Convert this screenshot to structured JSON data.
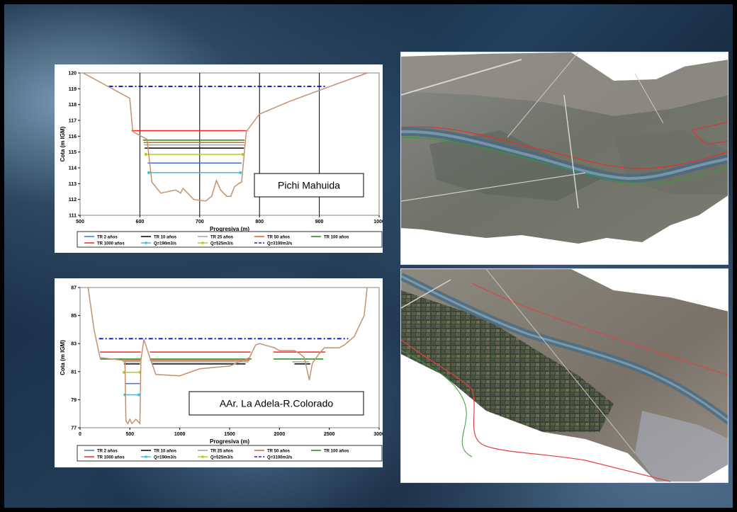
{
  "legend_labels": [
    "TR 2 años",
    "TR 10 años",
    "TR 25 años",
    "TR 50 años",
    "TR 100 años",
    "TR 1000 años",
    "Q=190m3/s",
    "Q=525m3/s",
    "Q=3100m3/s"
  ],
  "legend_colors": [
    "#4472c4",
    "#000000",
    "#a0a0a0",
    "#e06020",
    "#1a8a1a",
    "#ff2020",
    "#33c3e0",
    "#b0d020",
    "#1020d0"
  ],
  "chart_data": [
    {
      "type": "line",
      "annotation": "Pichi Mahuida",
      "xlabel": "Progresiva (m)",
      "ylabel": "Cota (m IGM)",
      "xlim": [
        500,
        1000
      ],
      "ylim": [
        111,
        120
      ],
      "xticks": [
        500,
        600,
        700,
        800,
        900,
        1000
      ],
      "yticks": [
        111,
        112,
        113,
        114,
        115,
        116,
        117,
        118,
        119,
        120
      ],
      "vertical_grid": [
        600,
        700,
        800,
        900
      ],
      "terrain": {
        "name": "terreno",
        "color": "#c8906a",
        "x": [
          505,
          583,
          588,
          612,
          620,
          635,
          660,
          668,
          672,
          690,
          710,
          720,
          728,
          735,
          745,
          752,
          758,
          765,
          770,
          778,
          800,
          850,
          900,
          980
        ],
        "y": [
          120,
          118.4,
          116.3,
          115.8,
          113.1,
          112.4,
          112.6,
          112.4,
          112.7,
          112.0,
          111.9,
          112.2,
          113.2,
          112.6,
          112.2,
          112.2,
          112.8,
          113.0,
          113.1,
          116.3,
          117.4,
          118.2,
          118.9,
          120
        ]
      },
      "series": [
        {
          "name": "Q=3100m3/s",
          "color": "#1020d0",
          "x": [
            548,
            910
          ],
          "y": [
            119.15,
            119.15
          ],
          "dash": true,
          "markers": false
        },
        {
          "name": "TR 1000 años",
          "color": "#ff2020",
          "x": [
            586,
            778
          ],
          "y": [
            116.35,
            116.35
          ]
        },
        {
          "name": "TR 100 años",
          "color": "#1a8a1a",
          "x": [
            605,
            775
          ],
          "y": [
            115.75,
            115.75
          ]
        },
        {
          "name": "TR 50 años",
          "color": "#e06020",
          "x": [
            606,
            775
          ],
          "y": [
            115.6,
            115.6
          ]
        },
        {
          "name": "TR 25 años",
          "color": "#a0a0a0",
          "x": [
            607,
            775
          ],
          "y": [
            115.45,
            115.45
          ]
        },
        {
          "name": "TR 10 años",
          "color": "#000000",
          "x": [
            608,
            774
          ],
          "y": [
            115.25,
            115.25
          ]
        },
        {
          "name": "Q=525m3/s",
          "color": "#b0d020",
          "x": [
            610,
            772
          ],
          "y": [
            114.85,
            114.85
          ],
          "markers": true
        },
        {
          "name": "TR 2 años",
          "color": "#4472c4",
          "x": [
            613,
            770
          ],
          "y": [
            114.3,
            114.3
          ]
        },
        {
          "name": "Q=190m3/s",
          "color": "#33c3e0",
          "x": [
            615,
            768
          ],
          "y": [
            113.7,
            113.7
          ],
          "markers": true
        }
      ]
    },
    {
      "type": "line",
      "annotation": "AAr. La Adela-R.Colorado",
      "xlabel": "Progresiva (m)",
      "ylabel": "Cota (m IGM)",
      "xlim": [
        0,
        3000
      ],
      "ylim": [
        77,
        87
      ],
      "xticks": [
        0,
        500,
        1000,
        1500,
        2000,
        2500,
        3000
      ],
      "yticks": [
        77,
        79,
        81,
        83,
        85,
        87
      ],
      "vertical_grid": [],
      "terrain": {
        "name": "terreno",
        "color": "#c8906a",
        "x": [
          80,
          140,
          200,
          450,
          460,
          480,
          500,
          520,
          560,
          600,
          610,
          640,
          700,
          760,
          1000,
          1200,
          1500,
          1700,
          1760,
          1800,
          1950,
          2000,
          2150,
          2200,
          2250,
          2300,
          2330,
          2400,
          2450,
          2600,
          2650,
          2750,
          2850,
          2880
        ],
        "y": [
          87,
          84,
          82.0,
          81.8,
          77.5,
          77.3,
          77.6,
          77.3,
          77.6,
          77.3,
          81.8,
          83.3,
          82.0,
          80.8,
          80.7,
          81.2,
          81.4,
          82.0,
          82.9,
          83.0,
          82.7,
          82.5,
          82.5,
          82.3,
          82.0,
          80.4,
          81.6,
          82.3,
          82.7,
          82.7,
          82.9,
          83.5,
          85.0,
          87.0
        ]
      },
      "series": [
        {
          "name": "Q=3100m3/s",
          "color": "#1020d0",
          "segments": [
            [
              190,
              2690
            ]
          ],
          "y": 83.35,
          "dash": true
        },
        {
          "name": "TR 1000 años",
          "color": "#ff2020",
          "segments": [
            [
              200,
              610
            ],
            [
              700,
              1710
            ],
            [
              1940,
              2460
            ]
          ],
          "y": 82.4
        },
        {
          "name": "TR 100 años",
          "color": "#1a8a1a",
          "segments": [
            [
              200,
              610
            ],
            [
              700,
              1720
            ],
            [
              1940,
              2440
            ]
          ],
          "y": 81.9
        },
        {
          "name": "TR 50 años",
          "color": "#e06020",
          "segments": [
            [
              420,
              610
            ],
            [
              700,
              1700
            ]
          ],
          "y": 81.8
        },
        {
          "name": "TR 25 años",
          "color": "#a0a0a0",
          "segments": [
            [
              430,
              610
            ],
            [
              710,
              1690
            ],
            [
              2130,
              2300
            ]
          ],
          "y": 81.7
        },
        {
          "name": "TR 10 años",
          "color": "#000000",
          "segments": [
            [
              440,
              600
            ],
            [
              720,
              1660
            ],
            [
              2150,
              2310
            ]
          ],
          "y": 81.55
        },
        {
          "name": "Q=525m3/s",
          "color": "#b0d020",
          "segments": [
            [
              440,
              600
            ]
          ],
          "y": 80.95,
          "markers": true
        },
        {
          "name": "TR 2 años",
          "color": "#4472c4",
          "segments": [
            [
              450,
              600
            ]
          ],
          "y": 80.15
        },
        {
          "name": "Q=190m3/s",
          "color": "#33c3e0",
          "segments": [
            [
              450,
              590
            ]
          ],
          "y": 79.35,
          "markers": true
        }
      ]
    }
  ]
}
